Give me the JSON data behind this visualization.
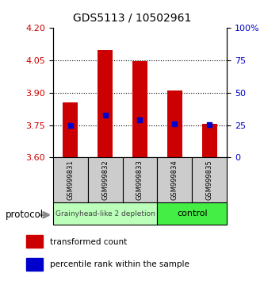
{
  "title": "GDS5113 / 10502961",
  "samples": [
    "GSM999831",
    "GSM999832",
    "GSM999833",
    "GSM999834",
    "GSM999835"
  ],
  "bar_bottoms": [
    3.6,
    3.6,
    3.6,
    3.6,
    3.6
  ],
  "bar_tops": [
    3.855,
    4.1,
    4.045,
    3.91,
    3.755
  ],
  "percentile_values": [
    3.75,
    3.795,
    3.775,
    3.755,
    3.752
  ],
  "ylim": [
    3.6,
    4.2
  ],
  "yticks_left": [
    3.6,
    3.75,
    3.9,
    4.05,
    4.2
  ],
  "right_positions": [
    3.6,
    3.75,
    3.9,
    4.05,
    4.2
  ],
  "right_labels": [
    "0",
    "25",
    "50",
    "75",
    "100%"
  ],
  "bar_color": "#cc0000",
  "percentile_color": "#0000cc",
  "group1_label": "Grainyhead-like 2 depletion",
  "group2_label": "control",
  "group1_color": "#bbffbb",
  "group2_color": "#44ee44",
  "protocol_label": "protocol",
  "legend_bar_label": "transformed count",
  "legend_pct_label": "percentile rank within the sample",
  "left_tick_color": "#cc0000",
  "right_tick_color": "#0000cc",
  "label_bg_color": "#cccccc",
  "bar_width": 0.45
}
